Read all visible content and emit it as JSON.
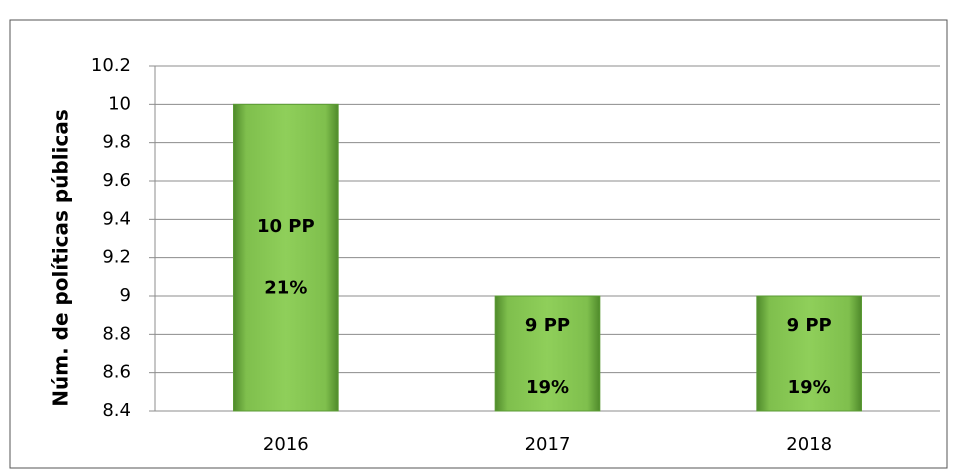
{
  "chart_data": {
    "type": "bar",
    "y_label": "Núm. de políticas públicas",
    "categories": [
      "2016",
      "2017",
      "2018"
    ],
    "values": [
      10,
      9,
      9
    ],
    "value_labels": [
      "10 PP",
      "9 PP",
      "9 PP"
    ],
    "percent_labels": [
      "21%",
      "19%",
      "19%"
    ],
    "color": "#70ad47",
    "ylim": [
      8.4,
      10.2
    ],
    "yticks": [
      8.4,
      8.6,
      8.8,
      9,
      9.2,
      9.4,
      9.6,
      9.8,
      10,
      10.2
    ],
    "grid": true
  }
}
